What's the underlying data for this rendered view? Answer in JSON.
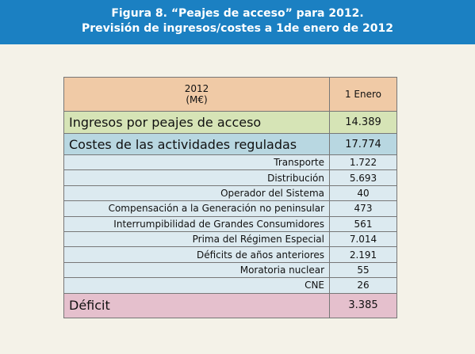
{
  "header": {
    "title": "Figura 8. “Peajes de acceso” para 2012.",
    "subtitle": "Previsión de ingresos/costes a 1de enero de 2012"
  },
  "table": {
    "header": [
      "2012",
      "(M€)",
      "1 Enero"
    ],
    "rows": [
      [
        "Ingresos por peajes de acceso",
        "14.389"
      ],
      [
        "Costes de las actividades reguladas",
        "17.774"
      ],
      [
        "Transporte",
        "1.722"
      ],
      [
        "Distribución",
        "5.693"
      ],
      [
        "Operador del Sistema",
        "40"
      ],
      [
        "Compensación a la Generación no peninsular",
        "473"
      ],
      [
        "Interrumpibilidad de Grandes Consumidores",
        "561"
      ],
      [
        "Prima del Régimen Especial",
        "7.014"
      ],
      [
        "Déficits de años anteriores",
        "2.191"
      ],
      [
        "Moratoria nuclear",
        "55"
      ],
      [
        "CNE",
        "26"
      ],
      [
        "Déficit",
        "3.385"
      ]
    ]
  }
}
